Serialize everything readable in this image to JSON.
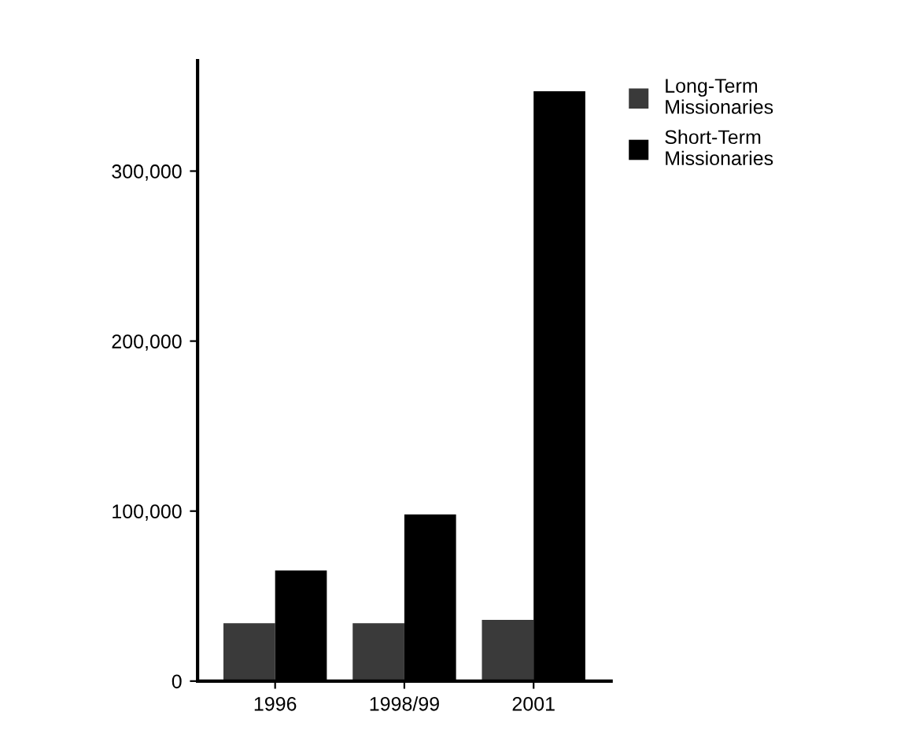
{
  "chart_data": {
    "type": "bar",
    "categories": [
      "1996",
      "1998/99",
      "2001"
    ],
    "series": [
      {
        "name": "Long-Term\nMissionaries",
        "color": "#3a3a3a",
        "values": [
          34000,
          34000,
          36000
        ]
      },
      {
        "name": "Short-Term\nMissionaries",
        "color": "#000000",
        "values": [
          65000,
          98000,
          347000
        ]
      }
    ],
    "ylim": [
      0,
      365000
    ],
    "yticks": [
      {
        "value": 0,
        "label": "0"
      },
      {
        "value": 100000,
        "label": "100,000"
      },
      {
        "value": 200000,
        "label": "200,000"
      },
      {
        "value": 300000,
        "label": "300,000"
      }
    ],
    "grid": false,
    "legend": "top right"
  }
}
